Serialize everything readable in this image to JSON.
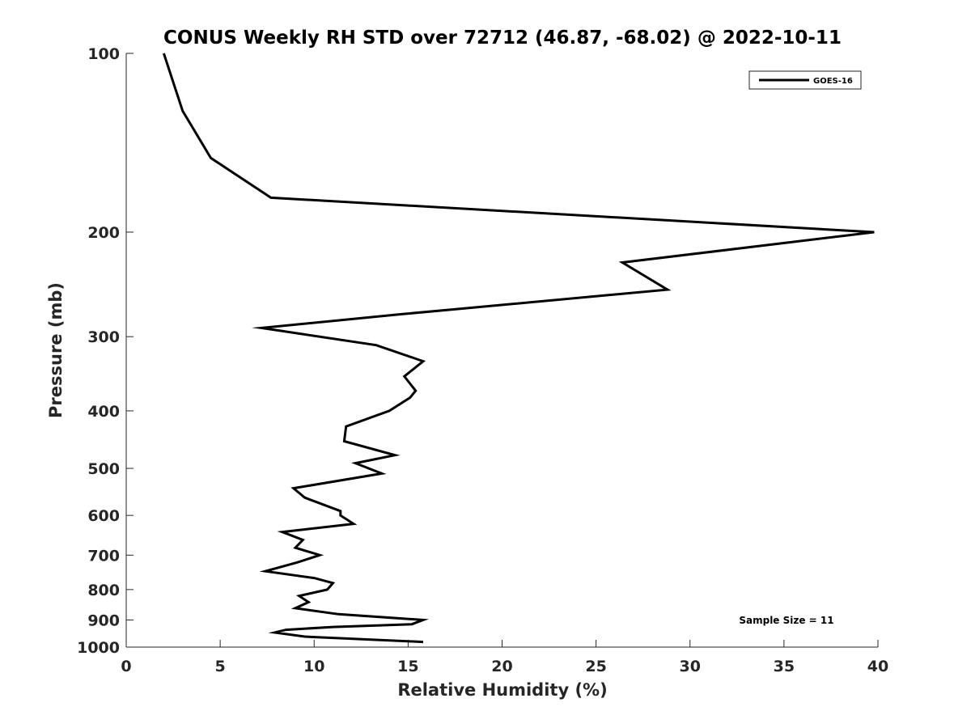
{
  "chart_data": {
    "type": "line",
    "title": "CONUS Weekly RH STD over 72712 (46.87, -68.02) @ 2022-10-11",
    "xlabel": "Relative Humidity (%)",
    "ylabel": "Pressure (mb)",
    "xlim": [
      0,
      40
    ],
    "ylim": [
      100,
      1000
    ],
    "y_scale": "log",
    "y_direction": "reversed",
    "x_ticks": [
      0,
      5,
      10,
      15,
      20,
      25,
      30,
      35,
      40
    ],
    "x_tick_labels": [
      "0",
      "5",
      "10",
      "15",
      "20",
      "25",
      "30",
      "35",
      "40"
    ],
    "y_ticks": [
      100,
      200,
      300,
      400,
      500,
      600,
      700,
      800,
      900,
      1000
    ],
    "y_tick_labels": [
      "100",
      "200",
      "300",
      "400",
      "500",
      "600",
      "700",
      "800",
      "900",
      "1000"
    ],
    "grid": false,
    "legend_position": "top-right",
    "annotation": "Sample Size = 11",
    "series": [
      {
        "name": "GOES-16",
        "color": "#000000",
        "points": [
          [
            2.0,
            100
          ],
          [
            3.0,
            125
          ],
          [
            4.5,
            150
          ],
          [
            7.7,
            175
          ],
          [
            39.8,
            200
          ],
          [
            26.4,
            225
          ],
          [
            28.8,
            250
          ],
          [
            14.6,
            275
          ],
          [
            7.2,
            290
          ],
          [
            13.3,
            310
          ],
          [
            15.8,
            330
          ],
          [
            14.8,
            350
          ],
          [
            15.4,
            370
          ],
          [
            15.1,
            380
          ],
          [
            14.0,
            400
          ],
          [
            11.7,
            425
          ],
          [
            11.6,
            450
          ],
          [
            14.3,
            475
          ],
          [
            12.2,
            490
          ],
          [
            13.6,
            510
          ],
          [
            8.9,
            540
          ],
          [
            9.5,
            560
          ],
          [
            11.4,
            590
          ],
          [
            11.4,
            600
          ],
          [
            12.1,
            620
          ],
          [
            8.3,
            640
          ],
          [
            9.4,
            660
          ],
          [
            9.0,
            680
          ],
          [
            10.3,
            700
          ],
          [
            9.1,
            720
          ],
          [
            7.4,
            745
          ],
          [
            10.0,
            765
          ],
          [
            11.0,
            780
          ],
          [
            10.7,
            800
          ],
          [
            9.2,
            820
          ],
          [
            9.7,
            840
          ],
          [
            9.0,
            860
          ],
          [
            11.3,
            880
          ],
          [
            15.8,
            900
          ],
          [
            15.2,
            915
          ],
          [
            11.0,
            925
          ],
          [
            8.5,
            935
          ],
          [
            7.9,
            945
          ],
          [
            9.5,
            960
          ],
          [
            15.8,
            980
          ]
        ]
      }
    ]
  }
}
